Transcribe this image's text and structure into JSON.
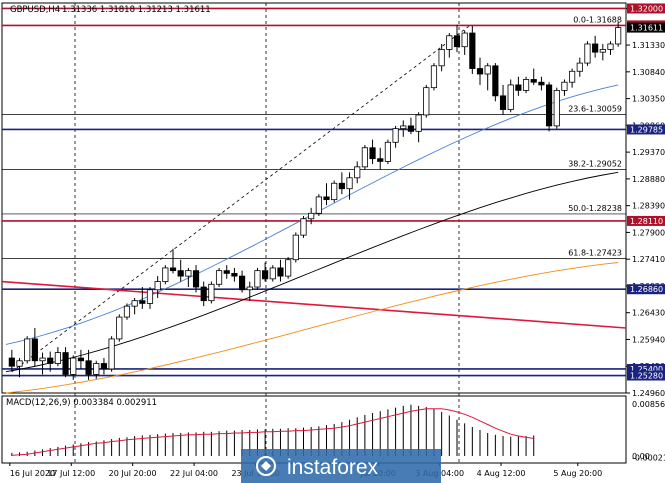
{
  "header": {
    "symbol": "GBPUSD,H4",
    "ohlc": "1.31336 1.31818 1.31213 1.31611"
  },
  "macd": {
    "label": "MACD(12,26,9) 0.003384 0.002911",
    "ticks": [
      "0.008566",
      "0.00",
      "-0.000217"
    ],
    "histogram": [
      0.0005,
      0.0006,
      0.0007,
      0.0009,
      0.0011,
      0.0013,
      0.0015,
      0.0017,
      0.0019,
      0.0021,
      0.0023,
      0.0024,
      0.0026,
      0.0028,
      0.003,
      0.0031,
      0.0033,
      0.0034,
      0.0035,
      0.0036,
      0.0037,
      0.0038,
      0.0038,
      0.0039,
      0.0039,
      0.004,
      0.004,
      0.0041,
      0.0042,
      0.0042,
      0.0043,
      0.0043,
      0.0044,
      0.0044,
      0.0045,
      0.0045,
      0.0046,
      0.0046,
      0.0047,
      0.0048,
      0.0049,
      0.0051,
      0.0053,
      0.0056,
      0.006,
      0.0064,
      0.0068,
      0.0071,
      0.0074,
      0.0077,
      0.008,
      0.0083,
      0.0085,
      0.0083,
      0.0081,
      0.0078,
      0.0073,
      0.0067,
      0.006,
      0.0054,
      0.0048,
      0.0043,
      0.0038,
      0.0035,
      0.0033,
      0.0032,
      0.0033,
      0.0033,
      0.0034
    ],
    "signal": [
      0.0001,
      0.0002,
      0.0003,
      0.0005,
      0.0007,
      0.0009,
      0.0011,
      0.0013,
      0.0015,
      0.0017,
      0.0019,
      0.0021,
      0.0022,
      0.0024,
      0.0025,
      0.0027,
      0.0028,
      0.0029,
      0.003,
      0.0031,
      0.0032,
      0.0033,
      0.0034,
      0.0035,
      0.0035,
      0.0036,
      0.0036,
      0.0037,
      0.0037,
      0.0038,
      0.0038,
      0.0039,
      0.0039,
      0.004,
      0.004,
      0.0041,
      0.0041,
      0.0042,
      0.0042,
      0.0043,
      0.0044,
      0.0045,
      0.0046,
      0.0048,
      0.005,
      0.0053,
      0.0056,
      0.0059,
      0.0062,
      0.0065,
      0.0068,
      0.0071,
      0.0074,
      0.0076,
      0.0078,
      0.0078,
      0.0078,
      0.0076,
      0.0073,
      0.0069,
      0.0064,
      0.0058,
      0.0052,
      0.0046,
      0.0041,
      0.0036,
      0.0033,
      0.0031,
      0.0029
    ]
  },
  "chart_data": {
    "type": "candlestick",
    "instrument": "GBPUSD",
    "timeframe": "H4",
    "ylim": [
      1.2496,
      1.321
    ],
    "y_ticks": [
      "1.32000",
      "1.31330",
      "1.30840",
      "1.30350",
      "1.29860",
      "1.29370",
      "1.28880",
      "1.28390",
      "1.27900",
      "1.27410",
      "1.26920",
      "1.26430",
      "1.25940",
      "1.25450",
      "1.24960"
    ],
    "x_ticks": [
      "16 Jul 2020",
      "17 Jul 12:00",
      "20 Jul 20:00",
      "22 Jul 04:00",
      "23 Jul 12:00",
      "Jul 20:00",
      "3 Aug 04:00",
      "4 Aug 12:00",
      "5 Aug 20:00"
    ],
    "candles": [
      [
        1.256,
        1.2575,
        1.2535,
        1.2545
      ],
      [
        1.2545,
        1.256,
        1.2525,
        1.2555
      ],
      [
        1.2555,
        1.26,
        1.255,
        1.2595
      ],
      [
        1.2595,
        1.2615,
        1.2545,
        1.2555
      ],
      [
        1.2555,
        1.257,
        1.253,
        1.256
      ],
      [
        1.256,
        1.2572,
        1.2535,
        1.255
      ],
      [
        1.255,
        1.258,
        1.2545,
        1.257
      ],
      [
        1.257,
        1.258,
        1.2525,
        1.253
      ],
      [
        1.253,
        1.2565,
        1.252,
        1.256
      ],
      [
        1.256,
        1.2575,
        1.254,
        1.2555
      ],
      [
        1.2555,
        1.2575,
        1.252,
        1.253
      ],
      [
        1.253,
        1.2555,
        1.2522,
        1.255
      ],
      [
        1.255,
        1.256,
        1.253,
        1.254
      ],
      [
        1.254,
        1.26,
        1.2535,
        1.2595
      ],
      [
        1.2595,
        1.264,
        1.259,
        1.2635
      ],
      [
        1.2635,
        1.266,
        1.263,
        1.2655
      ],
      [
        1.2655,
        1.267,
        1.264,
        1.2665
      ],
      [
        1.2665,
        1.269,
        1.265,
        1.266
      ],
      [
        1.266,
        1.269,
        1.265,
        1.2685
      ],
      [
        1.2685,
        1.271,
        1.267,
        1.27
      ],
      [
        1.27,
        1.273,
        1.2695,
        1.2725
      ],
      [
        1.2725,
        1.276,
        1.2715,
        1.272
      ],
      [
        1.272,
        1.274,
        1.27,
        1.271
      ],
      [
        1.271,
        1.2725,
        1.269,
        1.272
      ],
      [
        1.272,
        1.273,
        1.268,
        1.269
      ],
      [
        1.269,
        1.27,
        1.2655,
        1.2665
      ],
      [
        1.2665,
        1.27,
        1.266,
        1.2695
      ],
      [
        1.2695,
        1.2725,
        1.269,
        1.272
      ],
      [
        1.272,
        1.273,
        1.2705,
        1.2715
      ],
      [
        1.2715,
        1.2725,
        1.27,
        1.271
      ],
      [
        1.271,
        1.272,
        1.268,
        1.2685
      ],
      [
        1.2685,
        1.27,
        1.2665,
        1.269
      ],
      [
        1.269,
        1.2725,
        1.2685,
        1.272
      ],
      [
        1.272,
        1.2735,
        1.27,
        1.2705
      ],
      [
        1.2705,
        1.273,
        1.27,
        1.2725
      ],
      [
        1.2725,
        1.274,
        1.27,
        1.271
      ],
      [
        1.271,
        1.2745,
        1.2705,
        1.274
      ],
      [
        1.274,
        1.279,
        1.2735,
        1.2785
      ],
      [
        1.2785,
        1.282,
        1.278,
        1.2815
      ],
      [
        1.2815,
        1.2835,
        1.2805,
        1.2825
      ],
      [
        1.2825,
        1.286,
        1.282,
        1.2855
      ],
      [
        1.2855,
        1.288,
        1.284,
        1.285
      ],
      [
        1.285,
        1.2885,
        1.2845,
        1.288
      ],
      [
        1.288,
        1.29,
        1.286,
        1.287
      ],
      [
        1.287,
        1.29,
        1.285,
        1.289
      ],
      [
        1.289,
        1.292,
        1.288,
        1.291
      ],
      [
        1.291,
        1.295,
        1.2905,
        1.2945
      ],
      [
        1.2945,
        1.296,
        1.2915,
        1.2925
      ],
      [
        1.2925,
        1.2945,
        1.2905,
        1.292
      ],
      [
        1.292,
        1.296,
        1.2915,
        1.2955
      ],
      [
        1.2955,
        1.2985,
        1.2945,
        1.298
      ],
      [
        1.298,
        1.2995,
        1.2965,
        1.2985
      ],
      [
        1.2985,
        1.3,
        1.297,
        1.2975
      ],
      [
        1.2975,
        1.301,
        1.2955,
        1.3005
      ],
      [
        1.3005,
        1.306,
        1.3,
        1.3055
      ],
      [
        1.3055,
        1.31,
        1.305,
        1.3095
      ],
      [
        1.3095,
        1.3135,
        1.3085,
        1.3125
      ],
      [
        1.3125,
        1.3155,
        1.311,
        1.315
      ],
      [
        1.315,
        1.317,
        1.312,
        1.313
      ],
      [
        1.313,
        1.316,
        1.3115,
        1.3155
      ],
      [
        1.3155,
        1.3168,
        1.308,
        1.309
      ],
      [
        1.309,
        1.311,
        1.306,
        1.308
      ],
      [
        1.308,
        1.31,
        1.305,
        1.3095
      ],
      [
        1.3095,
        1.31,
        1.303,
        1.304
      ],
      [
        1.304,
        1.306,
        1.3005,
        1.3015
      ],
      [
        1.3015,
        1.307,
        1.301,
        1.306
      ],
      [
        1.306,
        1.3075,
        1.304,
        1.305
      ],
      [
        1.305,
        1.3075,
        1.3045,
        1.307
      ],
      [
        1.307,
        1.309,
        1.306,
        1.3065
      ],
      [
        1.3065,
        1.3075,
        1.305,
        1.306
      ],
      [
        1.306,
        1.3065,
        1.2975,
        1.2985
      ],
      [
        1.2985,
        1.3055,
        1.298,
        1.305
      ],
      [
        1.305,
        1.307,
        1.304,
        1.3065
      ],
      [
        1.3065,
        1.309,
        1.3055,
        1.3085
      ],
      [
        1.3085,
        1.311,
        1.3075,
        1.31
      ],
      [
        1.31,
        1.314,
        1.3095,
        1.3135
      ],
      [
        1.3135,
        1.315,
        1.311,
        1.312
      ],
      [
        1.312,
        1.3135,
        1.3105,
        1.3125
      ],
      [
        1.3125,
        1.314,
        1.3115,
        1.3135
      ],
      [
        1.3135,
        1.3175,
        1.313,
        1.3165
      ]
    ],
    "moving_averages": [
      {
        "color": "#4a7fd6",
        "from": 1.2585,
        "to": 1.306
      },
      {
        "color": "#000000",
        "from": 1.2535,
        "to": 1.29
      },
      {
        "color": "#f28c18",
        "from": 1.2496,
        "to": 1.2735
      }
    ],
    "horizontal_levels": [
      {
        "value": "1.32000",
        "color": "#b0102a"
      },
      {
        "value": "1.31690",
        "color": "#b0102a"
      },
      {
        "value": "1.29785",
        "color": "#1a237e"
      },
      {
        "value": "1.28110",
        "color": "#b0102a"
      },
      {
        "value": "1.26860",
        "color": "#1a237e"
      },
      {
        "value": "1.25400",
        "color": "#1a237e"
      },
      {
        "value": "1.25280",
        "color": "#1a237e"
      }
    ],
    "fibonacci": [
      {
        "label": "0.0-1.31688",
        "value": 1.31688
      },
      {
        "label": "23.6-1.30059",
        "value": 1.30059
      },
      {
        "label": "38.2-1.29052",
        "value": 1.29052
      },
      {
        "label": "50.0-1.28238",
        "value": 1.28238
      },
      {
        "label": "61.8-1.27423",
        "value": 1.27423
      }
    ],
    "current_price": {
      "label": "1.31611",
      "color": "#000000"
    },
    "trendline": {
      "color": "#e0183c",
      "from": 1.27,
      "to": 1.2615
    }
  },
  "brand": {
    "text": "instaforex"
  }
}
